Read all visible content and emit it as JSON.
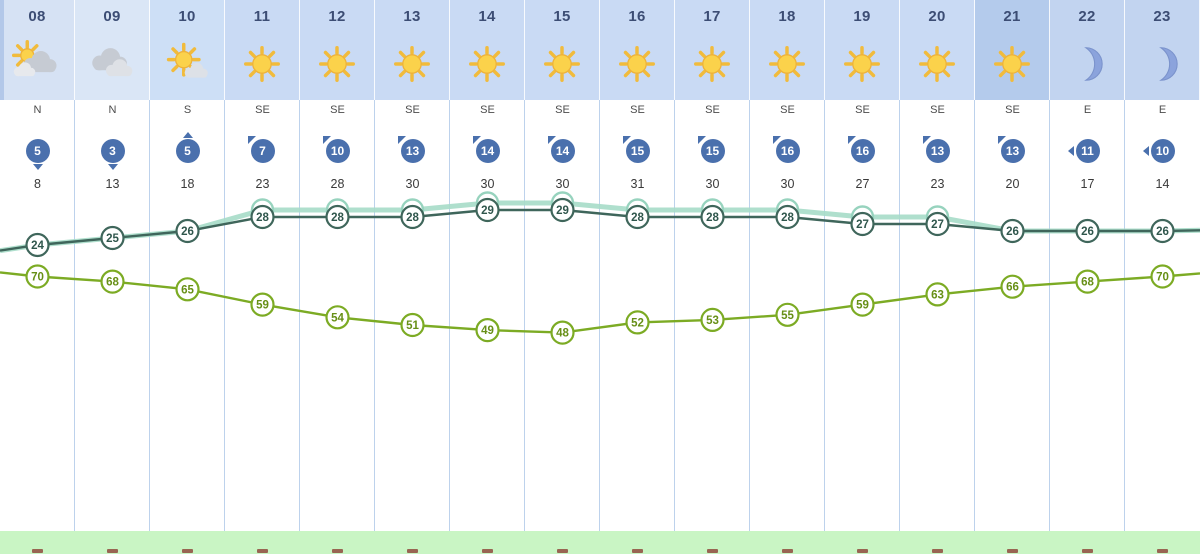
{
  "colors": {
    "hour_text": "#3c4d74",
    "wind_badge": "#4a70ad",
    "divider": "#bdd2ec",
    "green_band": "#c9f5c4",
    "temp_line": "#3f665b",
    "temp_text": "#2f564c",
    "feels_line": "#a6dbc8",
    "feels_stroke": "#97d3be",
    "feels_text": "#5cb496",
    "humidity_line": "#7cab24",
    "humidity_text": "#678f16"
  },
  "columns": [
    {
      "hour": "08",
      "icon": "sun-behind-clouds",
      "dir": "N",
      "wind": 5,
      "gust": 8,
      "bg": "#d6e2f4"
    },
    {
      "hour": "09",
      "icon": "clouds",
      "dir": "N",
      "wind": 3,
      "gust": 13,
      "bg": "#dae6f6"
    },
    {
      "hour": "10",
      "icon": "sun-with-cloud",
      "dir": "S",
      "wind": 5,
      "gust": 18,
      "bg": "#cddff6"
    },
    {
      "hour": "11",
      "icon": "sun",
      "dir": "SE",
      "wind": 7,
      "gust": 23,
      "bg": "#c9daf4"
    },
    {
      "hour": "12",
      "icon": "sun",
      "dir": "SE",
      "wind": 10,
      "gust": 28,
      "bg": "#c9daf4"
    },
    {
      "hour": "13",
      "icon": "sun",
      "dir": "SE",
      "wind": 13,
      "gust": 30,
      "bg": "#c9daf4"
    },
    {
      "hour": "14",
      "icon": "sun",
      "dir": "SE",
      "wind": 14,
      "gust": 30,
      "bg": "#c9daf4"
    },
    {
      "hour": "15",
      "icon": "sun",
      "dir": "SE",
      "wind": 14,
      "gust": 30,
      "bg": "#c9daf4"
    },
    {
      "hour": "16",
      "icon": "sun",
      "dir": "SE",
      "wind": 15,
      "gust": 31,
      "bg": "#c9daf4"
    },
    {
      "hour": "17",
      "icon": "sun",
      "dir": "SE",
      "wind": 15,
      "gust": 30,
      "bg": "#c9daf4"
    },
    {
      "hour": "18",
      "icon": "sun",
      "dir": "SE",
      "wind": 16,
      "gust": 30,
      "bg": "#c9daf4"
    },
    {
      "hour": "19",
      "icon": "sun",
      "dir": "SE",
      "wind": 16,
      "gust": 27,
      "bg": "#c9daf4"
    },
    {
      "hour": "20",
      "icon": "sun",
      "dir": "SE",
      "wind": 13,
      "gust": 23,
      "bg": "#c9daf4"
    },
    {
      "hour": "21",
      "icon": "sun",
      "dir": "SE",
      "wind": 13,
      "gust": 20,
      "bg": "#b4cbec"
    },
    {
      "hour": "22",
      "icon": "moon",
      "dir": "E",
      "wind": 11,
      "gust": 17,
      "bg": "#c2d4f0"
    },
    {
      "hour": "23",
      "icon": "moon",
      "dir": "E",
      "wind": 10,
      "gust": 14,
      "bg": "#c2d4f0"
    }
  ],
  "chart_data": {
    "type": "line",
    "x": [
      "08",
      "09",
      "10",
      "11",
      "12",
      "13",
      "14",
      "15",
      "16",
      "17",
      "18",
      "19",
      "20",
      "21",
      "22",
      "23"
    ],
    "series": [
      {
        "name": "temperature",
        "values": [
          24,
          25,
          26,
          28,
          28,
          28,
          29,
          29,
          28,
          28,
          28,
          27,
          27,
          26,
          26,
          26
        ],
        "color": "#3f665b"
      },
      {
        "name": "thermal-sensation",
        "values": [
          24,
          25,
          26,
          29,
          29,
          29,
          30,
          30,
          29,
          29,
          29,
          28,
          28,
          26,
          26,
          26
        ],
        "color": "#a6dbc8"
      },
      {
        "name": "relative-humidity",
        "values": [
          70,
          68,
          65,
          59,
          54,
          51,
          49,
          48,
          52,
          53,
          55,
          59,
          63,
          66,
          68,
          70
        ],
        "color": "#7cab24"
      }
    ],
    "legend": "none",
    "grid": "vertical-column-dividers"
  }
}
